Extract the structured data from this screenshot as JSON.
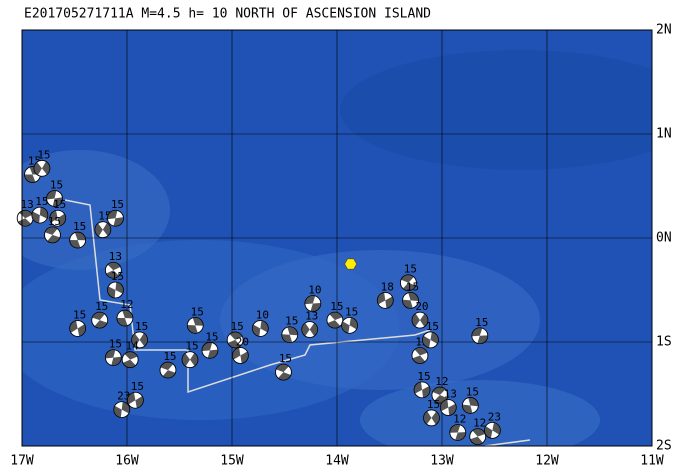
{
  "title": "E201705271711A M=4.5 h= 10 NORTH OF ASCENSION ISLAND",
  "lon_range": [
    -17,
    -11
  ],
  "lat_range": [
    -2,
    2
  ],
  "lon_ticks": [
    {
      "value": -17,
      "label": "17W"
    },
    {
      "value": -16,
      "label": "16W"
    },
    {
      "value": -15,
      "label": "15W"
    },
    {
      "value": -14,
      "label": "14W"
    },
    {
      "value": -13,
      "label": "13W"
    },
    {
      "value": -12,
      "label": "12W"
    },
    {
      "value": -11,
      "label": "11W"
    }
  ],
  "lat_ticks": [
    {
      "value": 2,
      "label": "2N"
    },
    {
      "value": 1,
      "label": "1N"
    },
    {
      "value": 0,
      "label": "0N"
    },
    {
      "value": -1,
      "label": "1S"
    },
    {
      "value": -2,
      "label": "2S"
    }
  ],
  "epicenter": {
    "lon": -13.87,
    "lat": -0.25
  },
  "events": [
    {
      "lon": -16.9,
      "lat": 0.61,
      "depth": "15"
    },
    {
      "lon": -16.81,
      "lat": 0.67,
      "depth": "15"
    },
    {
      "lon": -16.69,
      "lat": 0.38,
      "depth": "15"
    },
    {
      "lon": -16.97,
      "lat": 0.19,
      "depth": "13"
    },
    {
      "lon": -16.83,
      "lat": 0.22,
      "depth": "15"
    },
    {
      "lon": -16.66,
      "lat": 0.19,
      "depth": "15"
    },
    {
      "lon": -16.71,
      "lat": 0.03,
      "depth": "15"
    },
    {
      "lon": -16.47,
      "lat": -0.02,
      "depth": "15"
    },
    {
      "lon": -16.23,
      "lat": 0.08,
      "depth": "15"
    },
    {
      "lon": -16.11,
      "lat": 0.19,
      "depth": "15"
    },
    {
      "lon": -16.13,
      "lat": -0.31,
      "depth": "13"
    },
    {
      "lon": -16.11,
      "lat": -0.5,
      "depth": "15"
    },
    {
      "lon": -16.47,
      "lat": -0.87,
      "depth": "15"
    },
    {
      "lon": -16.26,
      "lat": -0.79,
      "depth": "15"
    },
    {
      "lon": -16.02,
      "lat": -0.77,
      "depth": "12"
    },
    {
      "lon": -15.88,
      "lat": -0.98,
      "depth": "15"
    },
    {
      "lon": -16.13,
      "lat": -1.15,
      "depth": "15"
    },
    {
      "lon": -15.97,
      "lat": -1.17,
      "depth": "14"
    },
    {
      "lon": -16.05,
      "lat": -1.65,
      "depth": "23"
    },
    {
      "lon": -15.92,
      "lat": -1.56,
      "depth": "15"
    },
    {
      "lon": -15.61,
      "lat": -1.27,
      "depth": "15"
    },
    {
      "lon": -15.35,
      "lat": -0.84,
      "depth": "15"
    },
    {
      "lon": -15.4,
      "lat": -1.17,
      "depth": "15"
    },
    {
      "lon": -15.21,
      "lat": -1.08,
      "depth": "15"
    },
    {
      "lon": -14.97,
      "lat": -0.98,
      "depth": "15"
    },
    {
      "lon": -14.73,
      "lat": -0.87,
      "depth": "10"
    },
    {
      "lon": -14.92,
      "lat": -1.13,
      "depth": "20"
    },
    {
      "lon": -14.51,
      "lat": -1.29,
      "depth": "15"
    },
    {
      "lon": -14.45,
      "lat": -0.93,
      "depth": "15"
    },
    {
      "lon": -14.26,
      "lat": -0.88,
      "depth": "13"
    },
    {
      "lon": -14.23,
      "lat": -0.63,
      "depth": "10"
    },
    {
      "lon": -14.02,
      "lat": -0.79,
      "depth": "15"
    },
    {
      "lon": -13.88,
      "lat": -0.84,
      "depth": "15"
    },
    {
      "lon": -13.54,
      "lat": -0.6,
      "depth": "18"
    },
    {
      "lon": -13.32,
      "lat": -0.43,
      "depth": "15"
    },
    {
      "lon": -13.3,
      "lat": -0.6,
      "depth": "15"
    },
    {
      "lon": -13.21,
      "lat": -0.79,
      "depth": "20"
    },
    {
      "lon": -12.64,
      "lat": -0.94,
      "depth": "15"
    },
    {
      "lon": -13.21,
      "lat": -1.13,
      "depth": "15"
    },
    {
      "lon": -13.11,
      "lat": -0.98,
      "depth": "15"
    },
    {
      "lon": -13.19,
      "lat": -1.46,
      "depth": "15"
    },
    {
      "lon": -13.02,
      "lat": -1.51,
      "depth": "12"
    },
    {
      "lon": -12.73,
      "lat": -1.61,
      "depth": "15"
    },
    {
      "lon": -13.1,
      "lat": -1.73,
      "depth": "15"
    },
    {
      "lon": -12.85,
      "lat": -1.87,
      "depth": "12"
    },
    {
      "lon": -12.66,
      "lat": -1.91,
      "depth": "12"
    },
    {
      "lon": -12.52,
      "lat": -1.85,
      "depth": "23"
    },
    {
      "lon": -12.94,
      "lat": -1.63,
      "depth": "13"
    }
  ]
}
